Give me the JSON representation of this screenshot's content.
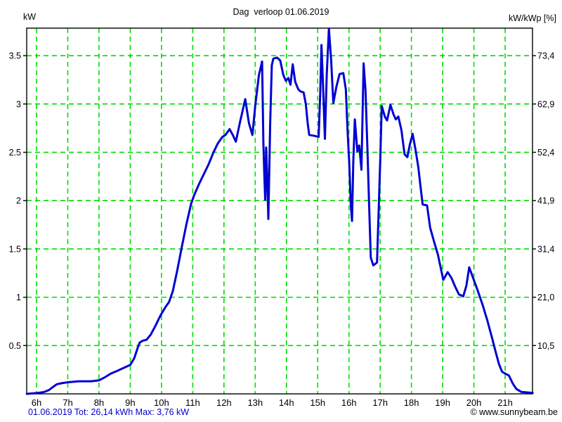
{
  "header": {
    "title": "Dag  verloop 01.06.2019",
    "left_unit": "kW",
    "right_unit": "kW/kWp [%]"
  },
  "footer": {
    "left": "01.06.2019 Tot: 26,14 kWh Max: 3,76 kW",
    "right": "© www.sunnybeam.be"
  },
  "stats": {
    "date": "01.06.2019",
    "total": "26,14 kWh",
    "max": "3,76 kW"
  },
  "colors": {
    "line": "#0000d2",
    "grid": "#00dc00",
    "border": "#000000",
    "text": "#000000",
    "footer_left": "#0000cc"
  },
  "chart_data": {
    "type": "line",
    "title": "Dag  verloop 01.06.2019",
    "ylabel_left": "kW",
    "ylabel_right": "kW/kWp [%]",
    "xlim": [
      5.685,
      21.876
    ],
    "ylim": [
      0,
      3.785
    ],
    "grid": true,
    "x_ticks": [
      {
        "h": 6,
        "label": "6h"
      },
      {
        "h": 7,
        "label": "7h"
      },
      {
        "h": 8,
        "label": "8h"
      },
      {
        "h": 9,
        "label": "9h"
      },
      {
        "h": 10,
        "label": "10h"
      },
      {
        "h": 11,
        "label": "11h"
      },
      {
        "h": 12,
        "label": "12h"
      },
      {
        "h": 13,
        "label": "13h"
      },
      {
        "h": 14,
        "label": "14h"
      },
      {
        "h": 15,
        "label": "15h"
      },
      {
        "h": 16,
        "label": "16h"
      },
      {
        "h": 17,
        "label": "17h"
      },
      {
        "h": 18,
        "label": "18h"
      },
      {
        "h": 19,
        "label": "19h"
      },
      {
        "h": 20,
        "label": "20h"
      },
      {
        "h": 21,
        "label": "21h"
      }
    ],
    "y_ticks_left": [
      {
        "kw": 0.5,
        "label": "0.5"
      },
      {
        "kw": 1.0,
        "label": "1"
      },
      {
        "kw": 1.5,
        "label": "1.5"
      },
      {
        "kw": 2.0,
        "label": "2"
      },
      {
        "kw": 2.5,
        "label": "2.5"
      },
      {
        "kw": 3.0,
        "label": "3"
      },
      {
        "kw": 3.5,
        "label": "3.5"
      }
    ],
    "y_ticks_right": [
      {
        "kw": 0.5,
        "label": "10,5"
      },
      {
        "kw": 1.0,
        "label": "21,0"
      },
      {
        "kw": 1.5,
        "label": "31,4"
      },
      {
        "kw": 2.0,
        "label": "41,9"
      },
      {
        "kw": 2.5,
        "label": "52,4"
      },
      {
        "kw": 3.0,
        "label": "62,9"
      },
      {
        "kw": 3.5,
        "label": "73,4"
      }
    ],
    "series": [
      {
        "name": "power_kw",
        "points": [
          [
            5.69,
            0
          ],
          [
            6.05,
            0.01
          ],
          [
            6.25,
            0.02
          ],
          [
            6.4,
            0.04
          ],
          [
            6.52,
            0.07
          ],
          [
            6.65,
            0.1
          ],
          [
            6.8,
            0.11
          ],
          [
            7,
            0.12
          ],
          [
            7.35,
            0.13
          ],
          [
            7.75,
            0.13
          ],
          [
            8,
            0.14
          ],
          [
            8.18,
            0.17
          ],
          [
            8.38,
            0.21
          ],
          [
            8.6,
            0.24
          ],
          [
            8.8,
            0.27
          ],
          [
            9,
            0.3
          ],
          [
            9.13,
            0.37
          ],
          [
            9.24,
            0.48
          ],
          [
            9.3,
            0.53
          ],
          [
            9.4,
            0.55
          ],
          [
            9.52,
            0.56
          ],
          [
            9.65,
            0.61
          ],
          [
            9.8,
            0.7
          ],
          [
            9.92,
            0.78
          ],
          [
            10,
            0.83
          ],
          [
            10.13,
            0.9
          ],
          [
            10.24,
            0.95
          ],
          [
            10.36,
            1.06
          ],
          [
            10.5,
            1.27
          ],
          [
            10.65,
            1.52
          ],
          [
            10.8,
            1.76
          ],
          [
            10.95,
            1.97
          ],
          [
            11.05,
            2.06
          ],
          [
            11.2,
            2.17
          ],
          [
            11.35,
            2.27
          ],
          [
            11.5,
            2.37
          ],
          [
            11.65,
            2.49
          ],
          [
            11.8,
            2.59
          ],
          [
            11.95,
            2.66
          ],
          [
            12.05,
            2.68
          ],
          [
            12.18,
            2.74
          ],
          [
            12.28,
            2.68
          ],
          [
            12.38,
            2.61
          ],
          [
            12.52,
            2.82
          ],
          [
            12.68,
            3.05
          ],
          [
            12.8,
            2.8
          ],
          [
            12.91,
            2.68
          ],
          [
            13,
            2.98
          ],
          [
            13.12,
            3.3
          ],
          [
            13.22,
            3.44
          ],
          [
            13.26,
            2.6
          ],
          [
            13.29,
            2.28
          ],
          [
            13.32,
            2.01
          ],
          [
            13.35,
            2.55
          ],
          [
            13.38,
            2.26
          ],
          [
            13.42,
            1.81
          ],
          [
            13.48,
            2.8
          ],
          [
            13.53,
            3.4
          ],
          [
            13.58,
            3.47
          ],
          [
            13.7,
            3.48
          ],
          [
            13.8,
            3.45
          ],
          [
            13.9,
            3.3
          ],
          [
            13.98,
            3.24
          ],
          [
            14.06,
            3.27
          ],
          [
            14.13,
            3.2
          ],
          [
            14.2,
            3.41
          ],
          [
            14.28,
            3.23
          ],
          [
            14.38,
            3.15
          ],
          [
            14.45,
            3.13
          ],
          [
            14.55,
            3.12
          ],
          [
            14.62,
            3
          ],
          [
            14.68,
            2.8
          ],
          [
            14.73,
            2.68
          ],
          [
            14.9,
            2.67
          ],
          [
            15.03,
            2.66
          ],
          [
            15.08,
            3.1
          ],
          [
            15.12,
            3.61
          ],
          [
            15.17,
            3.2
          ],
          [
            15.23,
            2.64
          ],
          [
            15.29,
            3.3
          ],
          [
            15.36,
            3.78
          ],
          [
            15.43,
            3.45
          ],
          [
            15.5,
            3.01
          ],
          [
            15.6,
            3.18
          ],
          [
            15.7,
            3.31
          ],
          [
            15.82,
            3.32
          ],
          [
            15.9,
            3.15
          ],
          [
            15.96,
            2.7
          ],
          [
            16.01,
            2.4
          ],
          [
            16.06,
            1.95
          ],
          [
            16.1,
            1.79
          ],
          [
            16.14,
            2.4
          ],
          [
            16.19,
            2.84
          ],
          [
            16.27,
            2.51
          ],
          [
            16.33,
            2.57
          ],
          [
            16.4,
            2.32
          ],
          [
            16.47,
            3.42
          ],
          [
            16.53,
            3.14
          ],
          [
            16.6,
            2.45
          ],
          [
            16.64,
            2.01
          ],
          [
            16.7,
            1.41
          ],
          [
            16.78,
            1.33
          ],
          [
            16.9,
            1.36
          ],
          [
            17,
            2.4
          ],
          [
            17.05,
            2.98
          ],
          [
            17.15,
            2.87
          ],
          [
            17.22,
            2.83
          ],
          [
            17.33,
            2.99
          ],
          [
            17.43,
            2.89
          ],
          [
            17.5,
            2.84
          ],
          [
            17.58,
            2.87
          ],
          [
            17.68,
            2.73
          ],
          [
            17.78,
            2.48
          ],
          [
            17.87,
            2.45
          ],
          [
            17.95,
            2.58
          ],
          [
            18.04,
            2.69
          ],
          [
            18.13,
            2.53
          ],
          [
            18.22,
            2.35
          ],
          [
            18.3,
            2.12
          ],
          [
            18.36,
            1.96
          ],
          [
            18.5,
            1.95
          ],
          [
            18.6,
            1.72
          ],
          [
            18.72,
            1.58
          ],
          [
            18.85,
            1.44
          ],
          [
            19.02,
            1.18
          ],
          [
            19.16,
            1.26
          ],
          [
            19.28,
            1.2
          ],
          [
            19.4,
            1.11
          ],
          [
            19.52,
            1.03
          ],
          [
            19.66,
            1.01
          ],
          [
            19.76,
            1.12
          ],
          [
            19.85,
            1.31
          ],
          [
            19.95,
            1.22
          ],
          [
            20.1,
            1.09
          ],
          [
            20.27,
            0.93
          ],
          [
            20.43,
            0.76
          ],
          [
            20.58,
            0.58
          ],
          [
            20.7,
            0.43
          ],
          [
            20.8,
            0.31
          ],
          [
            20.9,
            0.23
          ],
          [
            21,
            0.21
          ],
          [
            21.12,
            0.19
          ],
          [
            21.24,
            0.11
          ],
          [
            21.36,
            0.05
          ],
          [
            21.52,
            0.02
          ],
          [
            21.88,
            0.01
          ]
        ]
      }
    ]
  }
}
